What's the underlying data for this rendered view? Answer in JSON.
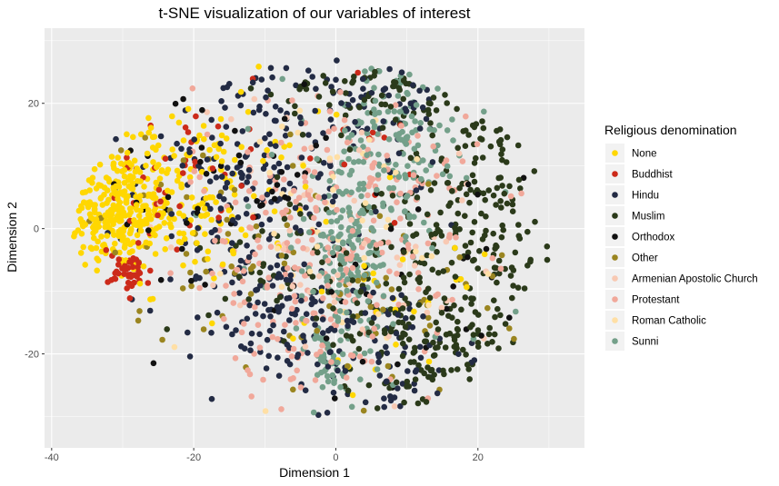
{
  "chart_data": {
    "type": "scatter",
    "title": "t-SNE visualization of our variables of interest",
    "xlabel": "Dimension 1",
    "ylabel": "Dimension 2",
    "xlim": [
      -41,
      35
    ],
    "ylim": [
      -35,
      32
    ],
    "x_ticks": [
      -40,
      -20,
      0,
      20
    ],
    "y_ticks": [
      -20,
      0,
      20
    ],
    "x_tick_labels": [
      "-40",
      "-20",
      "0",
      "20"
    ],
    "y_tick_labels": [
      "-20",
      "0",
      "20"
    ],
    "grid": true,
    "background": "#ebebeb",
    "legend": {
      "title": "Religious denomination",
      "placement": "right"
    },
    "series": [
      {
        "name": "None",
        "color": "#FFD700",
        "clusters": [
          {
            "cx": -31,
            "cy": 3,
            "sx": 4,
            "sy": 5,
            "n": 260
          },
          {
            "cx": -22,
            "cy": 5,
            "sx": 5,
            "sy": 7,
            "n": 130
          },
          {
            "cx": 8,
            "cy": -14,
            "sx": 6,
            "sy": 5,
            "n": 25
          },
          {
            "cx": -10,
            "cy": 10,
            "sx": 10,
            "sy": 8,
            "n": 30
          }
        ]
      },
      {
        "name": "Buddhist",
        "color": "#CC2A1A",
        "clusters": [
          {
            "cx": -29,
            "cy": -7,
            "sx": 1.5,
            "sy": 1.5,
            "n": 45
          },
          {
            "cx": -24,
            "cy": 6,
            "sx": 4,
            "sy": 5,
            "n": 35
          },
          {
            "cx": -5,
            "cy": 15,
            "sx": 10,
            "sy": 8,
            "n": 20
          }
        ]
      },
      {
        "name": "Hindu",
        "color": "#232B44",
        "clusters": [
          {
            "cx": -12,
            "cy": 8,
            "sx": 8,
            "sy": 10,
            "n": 180
          },
          {
            "cx": -8,
            "cy": -14,
            "sx": 6,
            "sy": 6,
            "n": 110
          },
          {
            "cx": 8,
            "cy": -20,
            "sx": 5,
            "sy": 6,
            "n": 70
          },
          {
            "cx": 5,
            "cy": 20,
            "sx": 6,
            "sy": 5,
            "n": 60
          }
        ]
      },
      {
        "name": "Muslim",
        "color": "#2B3A1A",
        "clusters": [
          {
            "cx": 20,
            "cy": 5,
            "sx": 6,
            "sy": 9,
            "n": 170
          },
          {
            "cx": 13,
            "cy": -17,
            "sx": 6,
            "sy": 7,
            "n": 160
          },
          {
            "cx": 5,
            "cy": 22,
            "sx": 7,
            "sy": 4,
            "n": 70
          },
          {
            "cx": -6,
            "cy": -5,
            "sx": 6,
            "sy": 6,
            "n": 60
          }
        ]
      },
      {
        "name": "Orthodox",
        "color": "#111111",
        "clusters": [
          {
            "cx": -14,
            "cy": 5,
            "sx": 10,
            "sy": 10,
            "n": 50
          },
          {
            "cx": 10,
            "cy": -10,
            "sx": 10,
            "sy": 10,
            "n": 30
          }
        ]
      },
      {
        "name": "Other",
        "color": "#9A8520",
        "clusters": [
          {
            "cx": -18,
            "cy": 0,
            "sx": 9,
            "sy": 9,
            "n": 50
          },
          {
            "cx": 8,
            "cy": -12,
            "sx": 8,
            "sy": 8,
            "n": 40
          }
        ]
      },
      {
        "name": "Armenian Apostolic Church",
        "color": "#F8C9B3",
        "clusters": [
          {
            "cx": 0,
            "cy": 0,
            "sx": 12,
            "sy": 12,
            "n": 55
          }
        ]
      },
      {
        "name": "Protestant",
        "color": "#F1A89A",
        "clusters": [
          {
            "cx": 0,
            "cy": 2,
            "sx": 10,
            "sy": 11,
            "n": 200
          },
          {
            "cx": -3,
            "cy": -14,
            "sx": 6,
            "sy": 6,
            "n": 70
          }
        ]
      },
      {
        "name": "Roman Catholic",
        "color": "#FFDFA5",
        "clusters": [
          {
            "cx": -2,
            "cy": 0,
            "sx": 12,
            "sy": 11,
            "n": 50
          }
        ]
      },
      {
        "name": "Sunni",
        "color": "#74A08A",
        "clusters": [
          {
            "cx": 2,
            "cy": -4,
            "sx": 2.5,
            "sy": 6,
            "n": 110
          },
          {
            "cx": 8,
            "cy": 14,
            "sx": 4,
            "sy": 7,
            "n": 130
          },
          {
            "cx": -1,
            "cy": -22,
            "sx": 3,
            "sy": 4,
            "n": 50
          },
          {
            "cx": 5,
            "cy": 0,
            "sx": 8,
            "sy": 10,
            "n": 70
          }
        ]
      }
    ]
  }
}
